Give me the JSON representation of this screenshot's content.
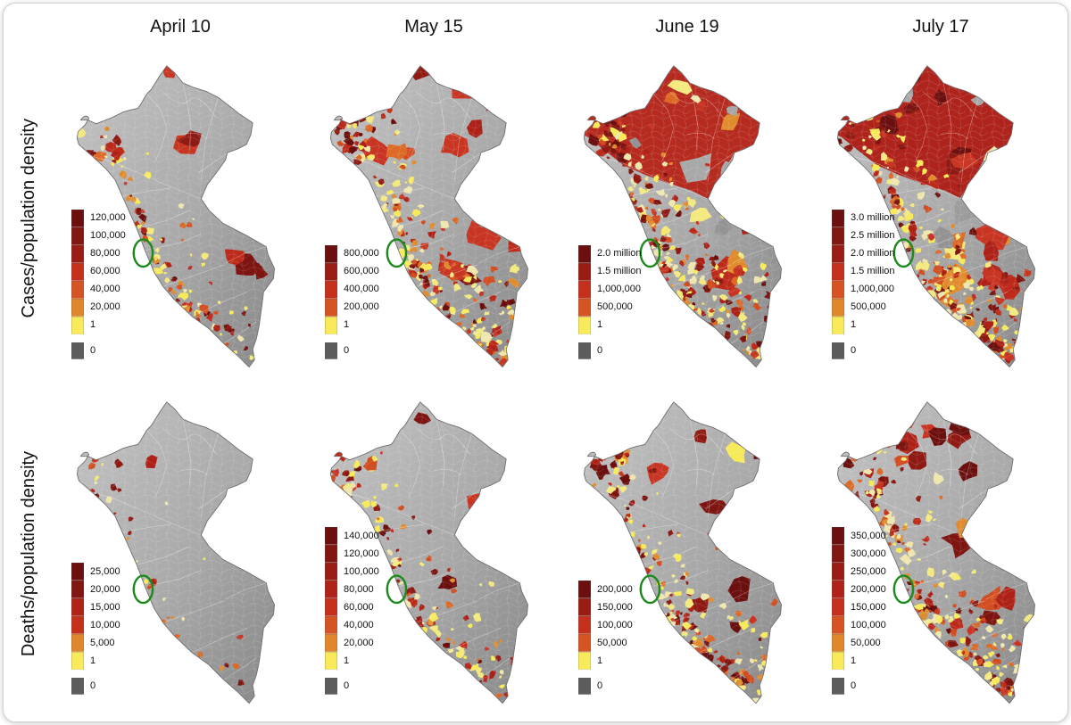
{
  "figure": {
    "columns": [
      "April 10",
      "May 15",
      "June 19",
      "July 17"
    ],
    "rows": [
      "Cases/population density",
      "Deaths/population density"
    ],
    "highlight": {
      "shape": "ellipse",
      "color": "#1e8a1e"
    },
    "colors": {
      "ramp_dark_to_yellow": [
        "#6b100e",
        "#821712",
        "#9a1d15",
        "#b02318",
        "#c5301d",
        "#d65424",
        "#e0862c",
        "#f8ea5a"
      ],
      "zero_swatch": "#5c5c5c",
      "map_base_light": "#c2c2c2",
      "map_base_dark": "#8a8a8a",
      "card_border": "#d2d2d2"
    }
  },
  "maps": [
    {
      "id": "cases-april10",
      "column": "April 10",
      "row": "Cases/population density",
      "legend": [
        "120,000",
        "100,000",
        "80,000",
        "60,000",
        "40,000",
        "20,000",
        "1"
      ],
      "zero_label": "0",
      "render_hints": {
        "north_fill": null,
        "groups": [
          {
            "region": "north",
            "n": 5,
            "rmin": 8,
            "rmax": 16,
            "w": [
              5,
              4,
              1,
              0,
              0
            ]
          },
          {
            "region": "east",
            "n": 3,
            "rmin": 8,
            "rmax": 15,
            "w": [
              5,
              3,
              0,
              0,
              0
            ]
          },
          {
            "region": "nw",
            "n": 14,
            "rmin": 2,
            "rmax": 7,
            "w": [
              3,
              3,
              2,
              2,
              0
            ]
          },
          {
            "region": "coast",
            "n": 60,
            "rmin": 1.5,
            "rmax": 5,
            "w": [
              2,
              2,
              3,
              3,
              0
            ]
          },
          {
            "region": "andes",
            "n": 20,
            "rmin": 1.5,
            "rmax": 4,
            "w": [
              1,
              1,
              2,
              4,
              0
            ]
          },
          {
            "region": "inland",
            "n": 12,
            "rmin": 1.5,
            "rmax": 4,
            "w": [
              0,
              1,
              1,
              4,
              0
            ]
          },
          {
            "region": "south",
            "n": 14,
            "rmin": 2,
            "rmax": 6,
            "w": [
              2,
              2,
              1,
              3,
              0
            ]
          }
        ]
      }
    },
    {
      "id": "cases-may15",
      "column": "May 15",
      "row": "Cases/population density",
      "legend": [
        "800,000",
        "600,000",
        "400,000",
        "200,000",
        "1"
      ],
      "zero_label": "0",
      "render_hints": {
        "north_fill": null,
        "groups": [
          {
            "region": "north",
            "n": 13,
            "rmin": 8,
            "rmax": 20,
            "w": [
              2,
              5,
              1,
              1,
              0
            ]
          },
          {
            "region": "east",
            "n": 8,
            "rmin": 8,
            "rmax": 18,
            "w": [
              2,
              5,
              1,
              0,
              0
            ]
          },
          {
            "region": "nw",
            "n": 18,
            "rmin": 2,
            "rmax": 7,
            "w": [
              3,
              3,
              2,
              2,
              0
            ]
          },
          {
            "region": "coast",
            "n": 95,
            "rmin": 1.5,
            "rmax": 5.5,
            "w": [
              2,
              2,
              3,
              4,
              0
            ]
          },
          {
            "region": "andes",
            "n": 70,
            "rmin": 1.5,
            "rmax": 5,
            "w": [
              1,
              2,
              2,
              4,
              0
            ]
          },
          {
            "region": "inland",
            "n": 25,
            "rmin": 1.5,
            "rmax": 4.5,
            "w": [
              1,
              1,
              2,
              4,
              0
            ]
          },
          {
            "region": "south",
            "n": 45,
            "rmin": 2,
            "rmax": 6,
            "w": [
              2,
              2,
              2,
              4,
              0
            ]
          }
        ]
      }
    },
    {
      "id": "cases-june19",
      "column": "June 19",
      "row": "Cases/population density",
      "legend": [
        "2.0 million",
        "1.5 million",
        "1,000,000",
        "500,000",
        "1"
      ],
      "zero_label": "0",
      "render_hints": {
        "north_fill": "#b62b20",
        "groups": [
          {
            "region": "north",
            "n": 12,
            "rmin": 5,
            "rmax": 14,
            "w": [
              1,
              2,
              3,
              1,
              1
            ]
          },
          {
            "region": "east",
            "n": 12,
            "rmin": 8,
            "rmax": 18,
            "w": [
              1,
              4,
              1,
              1,
              1
            ]
          },
          {
            "region": "eastmid",
            "n": 5,
            "rmin": 10,
            "rmax": 18,
            "w": [
              0,
              0,
              0,
              0,
              1
            ]
          },
          {
            "region": "nw",
            "n": 18,
            "rmin": 2,
            "rmax": 7,
            "w": [
              4,
              3,
              2,
              1,
              0
            ]
          },
          {
            "region": "coast",
            "n": 100,
            "rmin": 1.5,
            "rmax": 5.5,
            "w": [
              2,
              2,
              3,
              5,
              0
            ]
          },
          {
            "region": "andes",
            "n": 85,
            "rmin": 1.5,
            "rmax": 5,
            "w": [
              1,
              1,
              2,
              5,
              0
            ]
          },
          {
            "region": "inland",
            "n": 20,
            "rmin": 1.5,
            "rmax": 4.5,
            "w": [
              1,
              1,
              1,
              4,
              0
            ]
          },
          {
            "region": "south",
            "n": 70,
            "rmin": 2,
            "rmax": 6,
            "w": [
              2,
              2,
              2,
              5,
              0
            ]
          }
        ]
      }
    },
    {
      "id": "cases-july17",
      "column": "July 17",
      "row": "Cases/population density",
      "legend": [
        "3.0 million",
        "2.5 million",
        "2.0 million",
        "1.5 million",
        "1,000,000",
        "500,000",
        "1"
      ],
      "zero_label": "0",
      "render_hints": {
        "north_fill": "#ae241c",
        "groups": [
          {
            "region": "north",
            "n": 9,
            "rmin": 5,
            "rmax": 12,
            "w": [
              3,
              1,
              2,
              1,
              1
            ]
          },
          {
            "region": "east",
            "n": 14,
            "rmin": 8,
            "rmax": 20,
            "w": [
              2,
              5,
              1,
              1,
              1
            ]
          },
          {
            "region": "eastmid",
            "n": 4,
            "rmin": 9,
            "rmax": 15,
            "w": [
              0,
              0,
              0,
              0,
              1
            ]
          },
          {
            "region": "nw",
            "n": 16,
            "rmin": 2,
            "rmax": 7,
            "w": [
              5,
              3,
              1,
              1,
              0
            ]
          },
          {
            "region": "coast",
            "n": 105,
            "rmin": 1.5,
            "rmax": 5.5,
            "w": [
              2,
              2,
              3,
              5,
              0
            ]
          },
          {
            "region": "andes",
            "n": 95,
            "rmin": 1.5,
            "rmax": 5,
            "w": [
              1,
              1,
              2,
              6,
              0
            ]
          },
          {
            "region": "inland",
            "n": 15,
            "rmin": 1.5,
            "rmax": 4.5,
            "w": [
              1,
              1,
              1,
              4,
              0
            ]
          },
          {
            "region": "south",
            "n": 85,
            "rmin": 2,
            "rmax": 6,
            "w": [
              2,
              2,
              2,
              5,
              0
            ]
          }
        ]
      }
    },
    {
      "id": "deaths-april10",
      "column": "April 10",
      "row": "Deaths/population density",
      "legend": [
        "25,000",
        "20,000",
        "15,000",
        "10,000",
        "5,000",
        "1"
      ],
      "zero_label": "0",
      "render_hints": {
        "north_fill": null,
        "groups": [
          {
            "region": "north",
            "n": 2,
            "rmin": 6,
            "rmax": 10,
            "w": [
              3,
              1,
              2,
              0,
              0
            ]
          },
          {
            "region": "nw",
            "n": 8,
            "rmin": 2,
            "rmax": 6,
            "w": [
              4,
              2,
              1,
              2,
              0
            ]
          },
          {
            "region": "coast",
            "n": 22,
            "rmin": 1.5,
            "rmax": 4,
            "w": [
              2,
              1,
              2,
              3,
              0
            ]
          },
          {
            "region": "inland",
            "n": 6,
            "rmin": 1.5,
            "rmax": 4,
            "w": [
              0,
              0,
              1,
              4,
              0
            ]
          },
          {
            "region": "south",
            "n": 7,
            "rmin": 2,
            "rmax": 5,
            "w": [
              2,
              1,
              1,
              3,
              0
            ]
          }
        ]
      }
    },
    {
      "id": "deaths-may15",
      "column": "May 15",
      "row": "Deaths/population density",
      "legend": [
        "140,000",
        "120,000",
        "100,000",
        "80,000",
        "60,000",
        "40,000",
        "20,000",
        "1"
      ],
      "zero_label": "0",
      "render_hints": {
        "north_fill": null,
        "groups": [
          {
            "region": "north",
            "n": 6,
            "rmin": 4,
            "rmax": 10,
            "w": [
              3,
              2,
              1,
              1,
              0
            ]
          },
          {
            "region": "east",
            "n": 3,
            "rmin": 6,
            "rmax": 13,
            "w": [
              4,
              2,
              0,
              0,
              0
            ]
          },
          {
            "region": "nw",
            "n": 14,
            "rmin": 2,
            "rmax": 7,
            "w": [
              4,
              2,
              2,
              2,
              0
            ]
          },
          {
            "region": "coast",
            "n": 70,
            "rmin": 1.5,
            "rmax": 5,
            "w": [
              3,
              2,
              2,
              4,
              0
            ]
          },
          {
            "region": "andes",
            "n": 25,
            "rmin": 1.5,
            "rmax": 4.5,
            "w": [
              1,
              1,
              1,
              4,
              0
            ]
          },
          {
            "region": "inland",
            "n": 9,
            "rmin": 1.5,
            "rmax": 4,
            "w": [
              0,
              1,
              1,
              3,
              0
            ]
          },
          {
            "region": "south",
            "n": 22,
            "rmin": 2,
            "rmax": 5.5,
            "w": [
              2,
              2,
              1,
              4,
              0
            ]
          }
        ]
      }
    },
    {
      "id": "deaths-june19",
      "column": "June 19",
      "row": "Deaths/population density",
      "legend": [
        "200,000",
        "150,000",
        "100,000",
        "50,000",
        "1"
      ],
      "zero_label": "0",
      "render_hints": {
        "north_fill": null,
        "groups": [
          {
            "region": "north",
            "n": 9,
            "rmin": 5,
            "rmax": 14,
            "w": [
              4,
              3,
              1,
              1,
              0
            ]
          },
          {
            "region": "east",
            "n": 6,
            "rmin": 6,
            "rmax": 14,
            "w": [
              4,
              2,
              0,
              1,
              0
            ]
          },
          {
            "region": "nw",
            "n": 16,
            "rmin": 2,
            "rmax": 7,
            "w": [
              4,
              2,
              2,
              2,
              0
            ]
          },
          {
            "region": "coast",
            "n": 85,
            "rmin": 1.5,
            "rmax": 5,
            "w": [
              3,
              2,
              2,
              4,
              0
            ]
          },
          {
            "region": "andes",
            "n": 45,
            "rmin": 1.5,
            "rmax": 4.5,
            "w": [
              1,
              1,
              2,
              4,
              0
            ]
          },
          {
            "region": "inland",
            "n": 10,
            "rmin": 1.5,
            "rmax": 4,
            "w": [
              1,
              0,
              1,
              3,
              0
            ]
          },
          {
            "region": "south",
            "n": 35,
            "rmin": 2,
            "rmax": 6,
            "w": [
              2,
              2,
              1,
              4,
              0
            ]
          }
        ]
      }
    },
    {
      "id": "deaths-july17",
      "column": "July 17",
      "row": "Deaths/population density",
      "legend": [
        "350,000",
        "300,000",
        "250,000",
        "200,000",
        "150,000",
        "100,000",
        "50,000",
        "1"
      ],
      "zero_label": "0",
      "render_hints": {
        "north_fill": null,
        "groups": [
          {
            "region": "top",
            "n": 6,
            "rmin": 6,
            "rmax": 12,
            "w": [
              2,
              4,
              0,
              0,
              0
            ]
          },
          {
            "region": "north",
            "n": 10,
            "rmin": 5,
            "rmax": 14,
            "w": [
              4,
              2,
              1,
              2,
              0
            ]
          },
          {
            "region": "east",
            "n": 8,
            "rmin": 6,
            "rmax": 16,
            "w": [
              4,
              2,
              1,
              1,
              0
            ]
          },
          {
            "region": "nw",
            "n": 18,
            "rmin": 2,
            "rmax": 7,
            "w": [
              4,
              2,
              2,
              3,
              0
            ]
          },
          {
            "region": "coast",
            "n": 95,
            "rmin": 1.5,
            "rmax": 5.5,
            "w": [
              2,
              2,
              3,
              5,
              0
            ]
          },
          {
            "region": "andes",
            "n": 60,
            "rmin": 1.5,
            "rmax": 5,
            "w": [
              1,
              1,
              2,
              5,
              0
            ]
          },
          {
            "region": "inland",
            "n": 12,
            "rmin": 1.5,
            "rmax": 4,
            "w": [
              1,
              0,
              1,
              3,
              0
            ]
          },
          {
            "region": "south",
            "n": 45,
            "rmin": 2,
            "rmax": 6,
            "w": [
              2,
              2,
              2,
              5,
              0
            ]
          }
        ]
      }
    }
  ]
}
